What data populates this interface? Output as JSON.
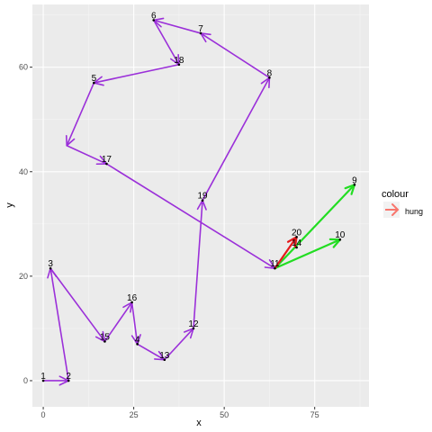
{
  "chart_data": {
    "type": "line",
    "title": "",
    "xlabel": "x",
    "ylabel": "y",
    "xlim": [
      -3,
      90
    ],
    "ylim": [
      -5,
      72
    ],
    "x_ticks": [
      0,
      25,
      50,
      75
    ],
    "y_ticks": [
      0,
      20,
      40,
      60
    ],
    "grid": true,
    "colors": {
      "panel_bg": "#ebebeb",
      "grid_major": "#ffffff",
      "path": "#9b30d9",
      "highlight_green": "#22dd22",
      "highlight_red": "#e41a1c",
      "legend_key": "#f8766d"
    },
    "legend": {
      "title": "colour",
      "placement": "right",
      "items": [
        {
          "label": "hung"
        }
      ]
    },
    "points": [
      {
        "label": "1",
        "x": 0,
        "y": 0
      },
      {
        "label": "2",
        "x": 7,
        "y": 0
      },
      {
        "label": "3",
        "x": 2,
        "y": 21.5
      },
      {
        "label": "4",
        "x": 26,
        "y": 7
      },
      {
        "label": "5",
        "x": 14,
        "y": 57
      },
      {
        "label": "6",
        "x": 30.5,
        "y": 69
      },
      {
        "label": "7",
        "x": 43.5,
        "y": 66.5
      },
      {
        "label": "8",
        "x": 62.5,
        "y": 58
      },
      {
        "label": "9",
        "x": 86,
        "y": 37.5
      },
      {
        "label": "10",
        "x": 82,
        "y": 27
      },
      {
        "label": "11",
        "x": 64,
        "y": 21.5
      },
      {
        "label": "12",
        "x": 41.5,
        "y": 10
      },
      {
        "label": "13",
        "x": 33.5,
        "y": 4
      },
      {
        "label": "14",
        "x": 70,
        "y": 25.5
      },
      {
        "label": "15",
        "x": 17,
        "y": 7.5
      },
      {
        "label": "16",
        "x": 24.5,
        "y": 15
      },
      {
        "label": "17",
        "x": 17.5,
        "y": 41.5
      },
      {
        "label": "18",
        "x": 37.5,
        "y": 60.5
      },
      {
        "label": "19",
        "x": 44,
        "y": 34.5
      },
      {
        "label": "20",
        "x": 70,
        "y": 27.5
      }
    ],
    "purple_path": [
      "1",
      "2",
      "3",
      "15",
      "16",
      "4",
      "13",
      "12",
      "19",
      "8",
      "7",
      "6",
      "18",
      "5",
      "4b",
      "17",
      "11"
    ],
    "segments": [
      {
        "from": [
          0,
          0
        ],
        "to": [
          7,
          0
        ],
        "color": "purple"
      },
      {
        "from": [
          7,
          0
        ],
        "to": [
          2,
          21.5
        ],
        "color": "purple"
      },
      {
        "from": [
          2,
          21.5
        ],
        "to": [
          17,
          7.5
        ],
        "color": "purple"
      },
      {
        "from": [
          17,
          7.5
        ],
        "to": [
          24.5,
          15
        ],
        "color": "purple"
      },
      {
        "from": [
          24.5,
          15
        ],
        "to": [
          26,
          7
        ],
        "color": "purple"
      },
      {
        "from": [
          26,
          7
        ],
        "to": [
          33.5,
          4
        ],
        "color": "purple"
      },
      {
        "from": [
          33.5,
          4
        ],
        "to": [
          41.5,
          10
        ],
        "color": "purple"
      },
      {
        "from": [
          41.5,
          10
        ],
        "to": [
          44,
          34.5
        ],
        "color": "purple"
      },
      {
        "from": [
          44,
          34.5
        ],
        "to": [
          62.5,
          58
        ],
        "color": "purple"
      },
      {
        "from": [
          62.5,
          58
        ],
        "to": [
          43.5,
          66.5
        ],
        "color": "purple"
      },
      {
        "from": [
          43.5,
          66.5
        ],
        "to": [
          30.5,
          69
        ],
        "color": "purple"
      },
      {
        "from": [
          30.5,
          69
        ],
        "to": [
          37.5,
          60.5
        ],
        "color": "purple"
      },
      {
        "from": [
          37.5,
          60.5
        ],
        "to": [
          14,
          57
        ],
        "color": "purple"
      },
      {
        "from": [
          14,
          57
        ],
        "to": [
          6.5,
          45
        ],
        "color": "purple"
      },
      {
        "from": [
          6.5,
          45
        ],
        "to": [
          17.5,
          41.5
        ],
        "color": "purple"
      },
      {
        "from": [
          17.5,
          41.5
        ],
        "to": [
          64,
          21.5
        ],
        "color": "purple"
      },
      {
        "from": [
          64,
          21.5
        ],
        "to": [
          86,
          37.5
        ],
        "color": "green"
      },
      {
        "from": [
          64,
          21.5
        ],
        "to": [
          82,
          27
        ],
        "color": "green"
      },
      {
        "from": [
          64,
          21.5
        ],
        "to": [
          70,
          27.5
        ],
        "color": "red"
      }
    ]
  }
}
